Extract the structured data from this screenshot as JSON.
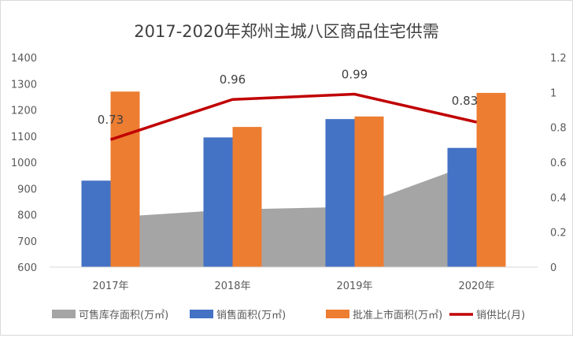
{
  "chart_data": {
    "type": "bar",
    "title": "2017-2020年郑州主城八区商品住宅供需",
    "categories": [
      "2017年",
      "2018年",
      "2019年",
      "2020年"
    ],
    "ylim": [
      600,
      1400
    ],
    "yticks": [
      600,
      700,
      800,
      900,
      1000,
      1100,
      1200,
      1300,
      1400
    ],
    "y2lim": [
      0,
      1.2
    ],
    "y2ticks": [
      "0",
      "0.2",
      "0.4",
      "0.6",
      "0.8",
      "1",
      "1.2"
    ],
    "legend_position": "bottom",
    "series": [
      {
        "name": "可售库存面积(万㎡)",
        "type": "area",
        "axis": "left",
        "color": "#a5a5a5",
        "values": [
          790,
          820,
          830,
          1000
        ]
      },
      {
        "name": "销售面积(万㎡)",
        "type": "bar",
        "axis": "left",
        "color": "#4472c4",
        "values": [
          930,
          1095,
          1165,
          1055
        ]
      },
      {
        "name": "批准上市面积(万㎡)",
        "type": "bar",
        "axis": "left",
        "color": "#ed7d31",
        "values": [
          1270,
          1135,
          1175,
          1265
        ]
      },
      {
        "name": "销供比(月)",
        "type": "line",
        "axis": "right",
        "color": "#c00000",
        "values": [
          0.73,
          0.96,
          0.99,
          0.83
        ],
        "labels": [
          "0.73",
          "0.96",
          "0.99",
          "0.83"
        ]
      }
    ]
  }
}
